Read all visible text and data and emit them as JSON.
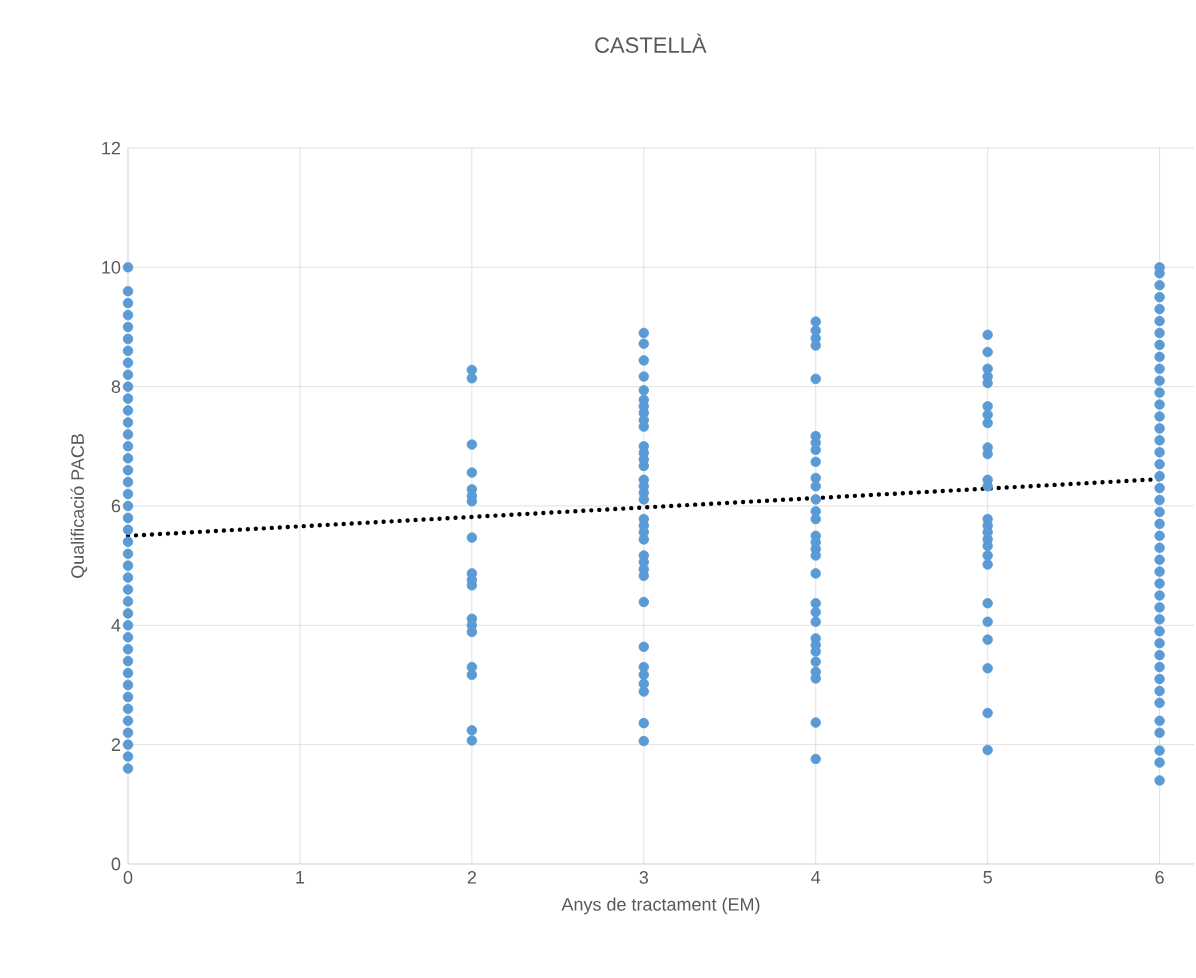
{
  "chart_data": {
    "type": "scatter",
    "title": "CASTELLÀ",
    "xlabel": "Anys de tractament (EM)",
    "ylabel": "Qualificació PACB",
    "xlim": [
      0,
      6.2
    ],
    "xticks": [
      0,
      1,
      2,
      3,
      4,
      5,
      6
    ],
    "ylim": [
      0,
      12
    ],
    "yticks": [
      0,
      2,
      4,
      6,
      8,
      10,
      12
    ],
    "grid": true,
    "series": [
      {
        "color": "#5b9bd5",
        "x": [
          0,
          0,
          0,
          0,
          0,
          0,
          0,
          0,
          0,
          0,
          0,
          0,
          0,
          0,
          0,
          0,
          0,
          0,
          0,
          0,
          0,
          0,
          0,
          0,
          0,
          0,
          0,
          0,
          0,
          0,
          0,
          0,
          0,
          0,
          0,
          0,
          0,
          0,
          0,
          0,
          0,
          0
        ],
        "values": [
          1.6,
          1.8,
          2.0,
          2.2,
          2.4,
          2.6,
          2.8,
          3.0,
          3.2,
          3.4,
          3.6,
          3.8,
          4.0,
          4.2,
          4.4,
          4.6,
          4.8,
          5.0,
          5.2,
          5.4,
          5.6,
          5.8,
          6.0,
          6.2,
          6.4,
          6.6,
          6.8,
          7.0,
          7.2,
          7.4,
          7.6,
          7.8,
          8.0,
          8.2,
          8.4,
          8.6,
          8.8,
          9.0,
          9.2,
          9.4,
          9.6,
          10.0
        ]
      },
      {
        "color": "#5b9bd5",
        "x": [
          2,
          2,
          2,
          2,
          2,
          2,
          2,
          2,
          2,
          2,
          2,
          2,
          2,
          2,
          2,
          2,
          2,
          2
        ],
        "values": [
          8.28,
          8.14,
          7.03,
          6.56,
          6.28,
          6.17,
          6.08,
          5.47,
          4.87,
          4.76,
          4.67,
          4.11,
          4.0,
          3.89,
          3.3,
          3.17,
          2.24,
          2.07
        ]
      },
      {
        "color": "#5b9bd5",
        "x": [
          3,
          3,
          3,
          3,
          3,
          3,
          3,
          3,
          3,
          3,
          3,
          3,
          3,
          3,
          3,
          3,
          3,
          3,
          3,
          3,
          3,
          3,
          3,
          3,
          3,
          3,
          3,
          3,
          3,
          3,
          3,
          3,
          3,
          3
        ],
        "values": [
          8.9,
          8.72,
          8.44,
          8.17,
          7.94,
          7.78,
          7.67,
          7.56,
          7.44,
          7.33,
          7.0,
          6.89,
          6.78,
          6.67,
          6.44,
          6.33,
          6.22,
          6.11,
          5.78,
          5.67,
          5.56,
          5.44,
          5.17,
          5.06,
          4.94,
          4.83,
          4.39,
          3.64,
          3.3,
          3.17,
          3.02,
          2.89,
          2.36,
          2.06
        ]
      },
      {
        "color": "#5b9bd5",
        "x": [
          4,
          4,
          4,
          4,
          4,
          4,
          4,
          4,
          4,
          4,
          4,
          4,
          4,
          4,
          4,
          4,
          4,
          4,
          4,
          4,
          4,
          4,
          4,
          4,
          4,
          4,
          4,
          4,
          4,
          4
        ],
        "values": [
          9.09,
          8.94,
          8.81,
          8.69,
          8.13,
          7.17,
          7.06,
          6.94,
          6.74,
          6.47,
          6.33,
          6.11,
          5.91,
          5.78,
          5.5,
          5.39,
          5.28,
          5.17,
          4.87,
          4.37,
          4.22,
          4.06,
          3.78,
          3.67,
          3.56,
          3.39,
          3.22,
          3.11,
          2.37,
          1.76
        ]
      },
      {
        "color": "#5b9bd5",
        "x": [
          5,
          5,
          5,
          5,
          5,
          5,
          5,
          5,
          5,
          5,
          5,
          5,
          5,
          5,
          5,
          5,
          5,
          5,
          5,
          5,
          5,
          5,
          5,
          5,
          5
        ],
        "values": [
          8.87,
          8.58,
          8.3,
          8.17,
          8.06,
          7.67,
          7.53,
          7.39,
          6.98,
          6.87,
          6.44,
          6.33,
          5.78,
          5.67,
          5.56,
          5.44,
          5.33,
          5.17,
          5.02,
          4.37,
          4.06,
          3.76,
          3.28,
          2.53,
          1.91
        ]
      },
      {
        "color": "#5b9bd5",
        "x": [
          6,
          6,
          6,
          6,
          6,
          6,
          6,
          6,
          6,
          6,
          6,
          6,
          6,
          6,
          6,
          6,
          6,
          6,
          6,
          6,
          6,
          6,
          6,
          6,
          6,
          6,
          6,
          6,
          6,
          6,
          6,
          6,
          6,
          6,
          6,
          6,
          6,
          6,
          6,
          6,
          6,
          6,
          6
        ],
        "values": [
          1.4,
          1.7,
          1.9,
          2.2,
          2.4,
          2.7,
          2.9,
          3.1,
          3.3,
          3.5,
          3.7,
          3.9,
          4.1,
          4.3,
          4.5,
          4.7,
          4.9,
          5.1,
          5.3,
          5.5,
          5.7,
          5.9,
          6.1,
          6.3,
          6.5,
          6.7,
          6.9,
          7.1,
          7.3,
          7.5,
          7.7,
          7.9,
          8.1,
          8.3,
          8.5,
          8.7,
          8.9,
          9.1,
          9.3,
          9.5,
          9.7,
          9.9,
          10.0
        ]
      },
      {
        "type": "line",
        "color": "#000000",
        "line_style": "dotted",
        "x": [
          0,
          6
        ],
        "values": [
          5.5,
          6.45
        ]
      }
    ]
  }
}
